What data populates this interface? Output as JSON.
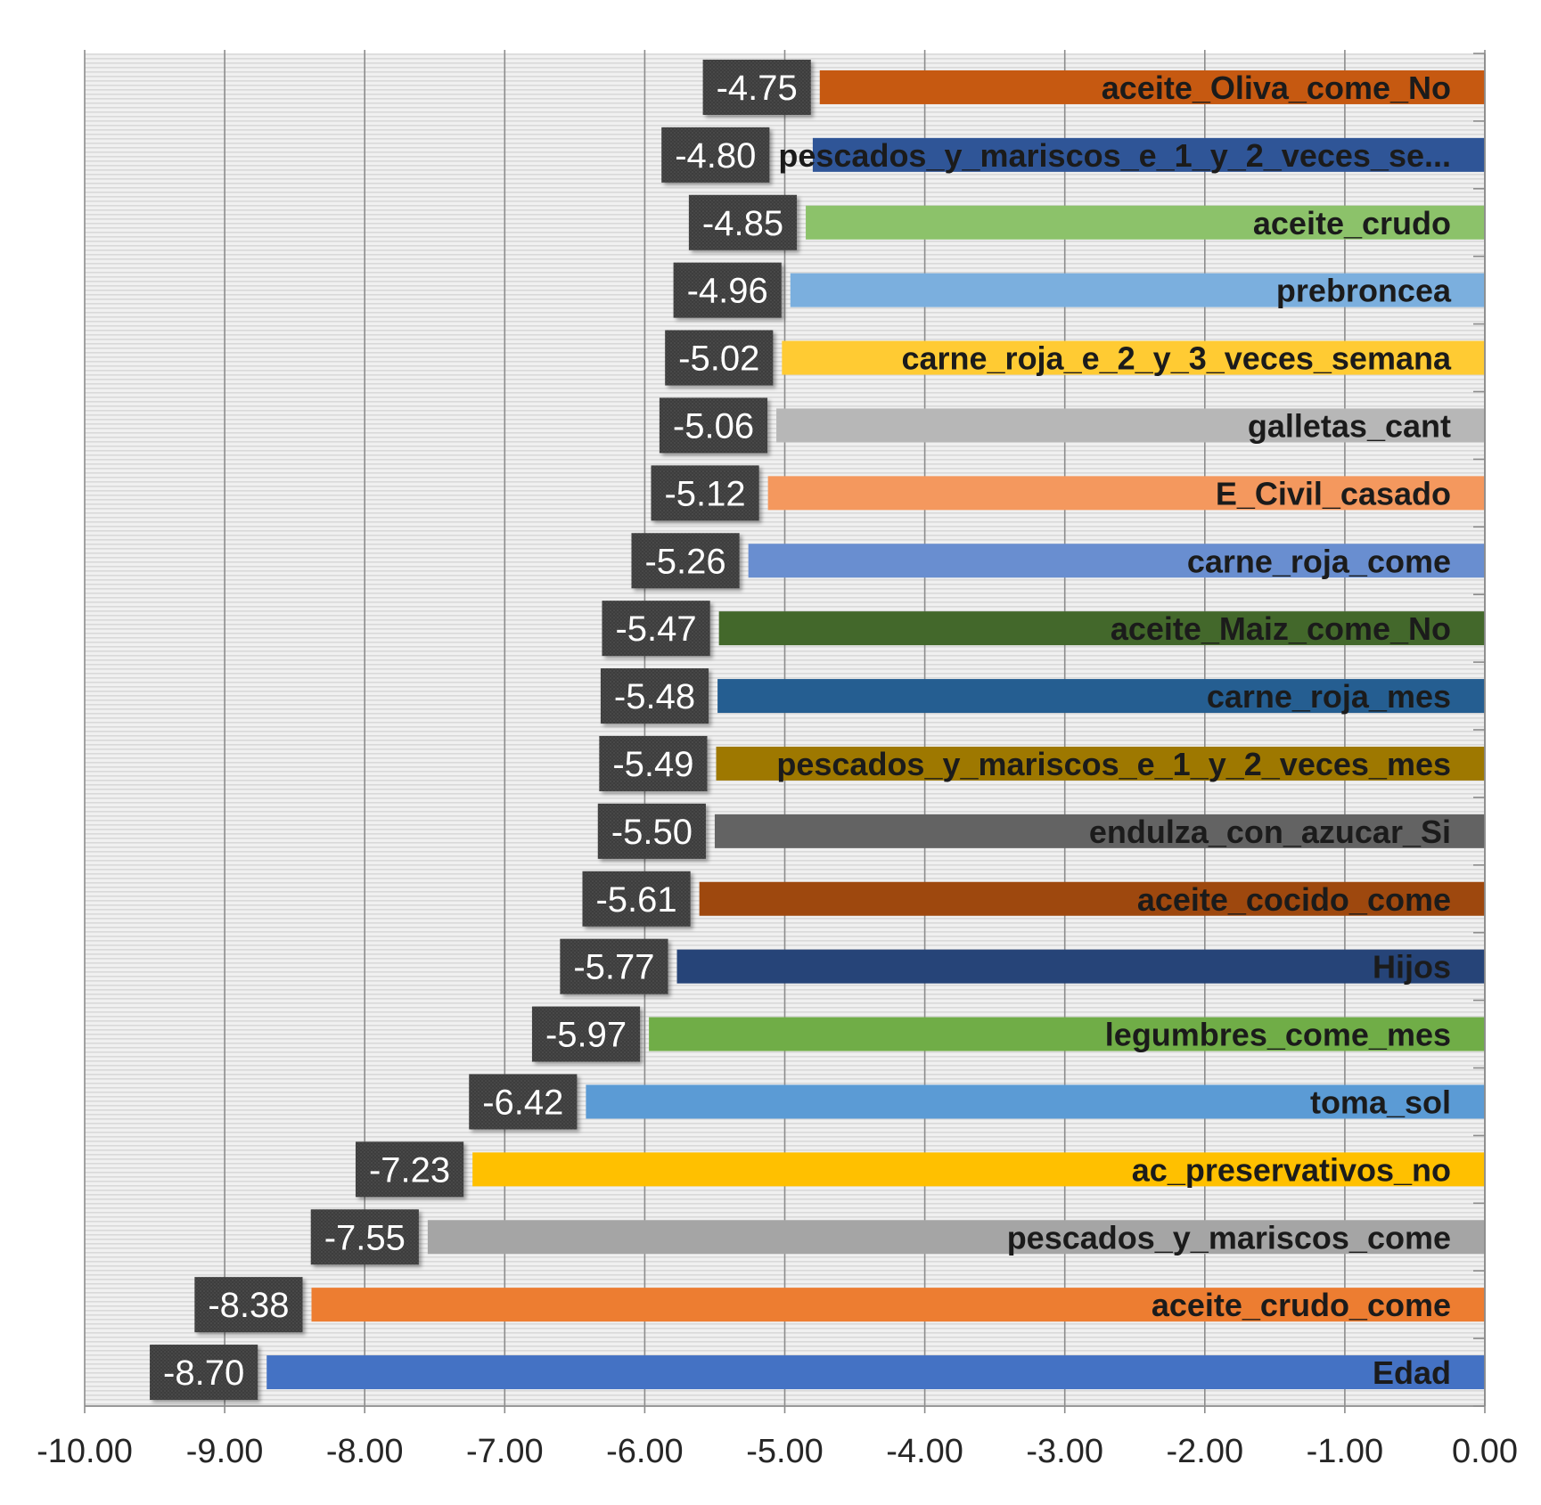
{
  "chart_data": {
    "type": "bar",
    "orientation": "horizontal",
    "title": "",
    "xlabel": "",
    "ylabel": "",
    "xlim": [
      -10,
      0
    ],
    "grid": "vertical",
    "legend": "none",
    "categories": [
      "aceite_Oliva_come_No",
      "pescados_y_mariscos_e_1_y_2_veces_se...",
      "aceite_crudo",
      "prebroncea",
      "carne_roja_e_2_y_3_veces_semana",
      "galletas_cant",
      "E_Civil_casado",
      "carne_roja_come",
      "aceite_Maiz_come_No",
      "carne_roja_mes",
      "pescados_y_mariscos_e_1_y_2_veces_mes",
      "endulza_con_azucar_Si",
      "aceite_cocido_come",
      "Hijos",
      "legumbres_come_mes",
      "toma_sol",
      "ac_preservativos_no",
      "pescados_y_mariscos_come",
      "aceite_crudo_come",
      "Edad"
    ],
    "values": [
      -4.75,
      -4.8,
      -4.85,
      -4.96,
      -5.02,
      -5.06,
      -5.12,
      -5.26,
      -5.47,
      -5.48,
      -5.49,
      -5.5,
      -5.61,
      -5.77,
      -5.97,
      -6.42,
      -7.23,
      -7.55,
      -8.38,
      -8.7
    ],
    "data_labels": [
      "-4.75",
      "-4.80",
      "-4.85",
      "-4.96",
      "-5.02",
      "-5.06",
      "-5.12",
      "-5.26",
      "-5.47",
      "-5.48",
      "-5.49",
      "-5.50",
      "-5.61",
      "-5.77",
      "-5.97",
      "-6.42",
      "-7.23",
      "-7.55",
      "-8.38",
      "-8.70"
    ],
    "colors": [
      "#C65911",
      "#2F5597",
      "#8CC26A",
      "#7BAFDE",
      "#FFCB33",
      "#B7B7B7",
      "#F4985E",
      "#698ED0",
      "#43682B",
      "#255E91",
      "#9E7800",
      "#636363",
      "#9E480E",
      "#264478",
      "#70AD47",
      "#5B9BD5",
      "#FFC000",
      "#A5A5A5",
      "#ED7D31",
      "#4472C4"
    ],
    "x_ticks": [
      -10,
      -9,
      -8,
      -7,
      -6,
      -5,
      -4,
      -3,
      -2,
      -1,
      0
    ],
    "x_tick_labels": [
      "-10.00",
      "-9.00",
      "-8.00",
      "-7.00",
      "-6.00",
      "-5.00",
      "-4.00",
      "-3.00",
      "-2.00",
      "-1.00",
      "0.00"
    ]
  }
}
